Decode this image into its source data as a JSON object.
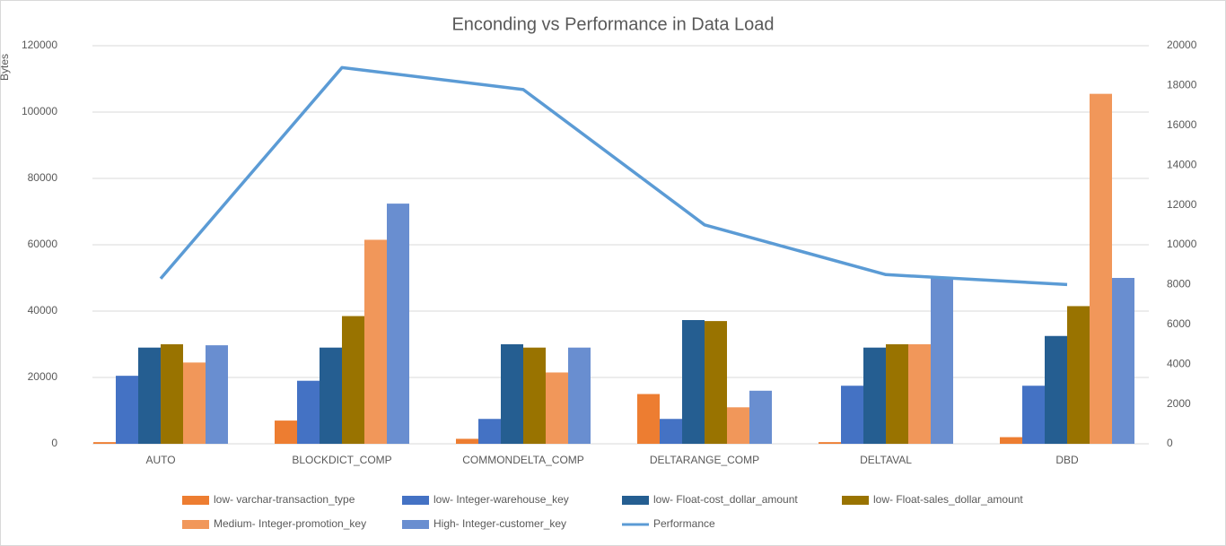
{
  "chart_data": {
    "type": "bar-line",
    "title": "Enconding vs Performance in Data Load",
    "y_label": "Bytes",
    "categories": [
      "AUTO",
      "BLOCKDICT_COMP",
      "COMMONDELTA_COMP",
      "DELTARANGE_COMP",
      "DELTAVAL",
      "DBD"
    ],
    "series": [
      {
        "name": "low- varchar-transaction_type",
        "color": "#ed7d31",
        "type": "bar",
        "values": [
          500,
          7000,
          1500,
          15000,
          500,
          2000
        ]
      },
      {
        "name": "low- Integer-warehouse_key",
        "color": "#4472c4",
        "type": "bar",
        "values": [
          20500,
          19000,
          7500,
          7500,
          17500,
          17500
        ]
      },
      {
        "name": "low- Float-cost_dollar_amount",
        "color": "#255e91",
        "type": "bar",
        "values": [
          29000,
          29000,
          30000,
          37300,
          29000,
          32500
        ]
      },
      {
        "name": "low- Float-sales_dollar_amount",
        "color": "#997300",
        "type": "bar",
        "values": [
          30000,
          38500,
          29000,
          37000,
          30000,
          41500
        ]
      },
      {
        "name": "Medium- Integer-promotion_key",
        "color": "#f1975a",
        "type": "bar",
        "values": [
          24500,
          61500,
          21500,
          11000,
          30000,
          105500
        ]
      },
      {
        "name": "High- Integer-customer_key",
        "color": "#698ed0",
        "type": "bar",
        "values": [
          29700,
          72400,
          29000,
          16000,
          50000,
          50000
        ]
      },
      {
        "name": "Performance",
        "color": "#5b9bd5",
        "type": "line",
        "axis": "y2",
        "values": [
          8300,
          18900,
          17800,
          11000,
          8500,
          8000
        ]
      }
    ],
    "ylim": [
      0,
      120000
    ],
    "yticks": [
      0,
      20000,
      40000,
      60000,
      80000,
      100000,
      120000
    ],
    "y2lim": [
      0,
      20000
    ],
    "y2ticks": [
      0,
      2000,
      4000,
      6000,
      8000,
      10000,
      12000,
      14000,
      16000,
      18000,
      20000
    ],
    "grid": true,
    "legend": "bottom"
  }
}
